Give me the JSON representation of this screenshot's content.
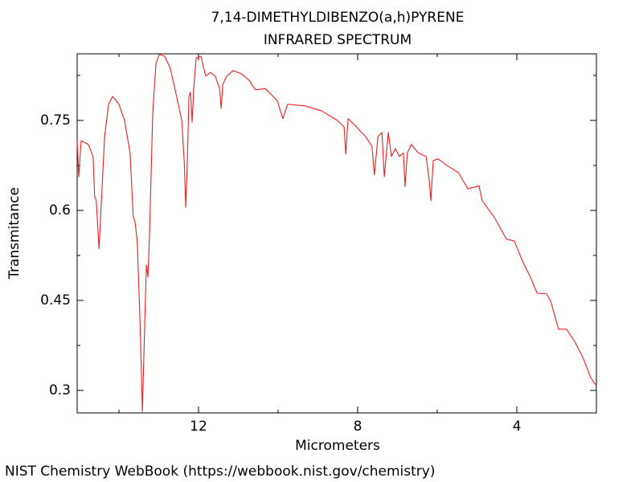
{
  "chart_data": {
    "type": "line",
    "title": "7,14-DIMETHYLDIBENZO(a,h)PYRENE",
    "subtitle": "INFRARED SPECTRUM",
    "x_label": "Micrometers",
    "y_label": "Transmitance",
    "footer": "NIST Chemistry WebBook (https://webbook.nist.gov/chemistry)",
    "color": "#e8201e",
    "xlim": [
      15.05,
      2.0
    ],
    "ylim": [
      0.2625,
      0.861
    ],
    "xticks": [
      12,
      8,
      4
    ],
    "xminorticks": [
      14,
      10,
      6,
      2
    ],
    "yticks": [
      0.75,
      0.6,
      0.45,
      0.3
    ],
    "yminorticks": [
      0.825,
      0.675,
      0.525,
      0.375
    ],
    "x": [
      15.05,
      15.01,
      14.95,
      14.77,
      14.65,
      14.61,
      14.57,
      14.5,
      14.44,
      14.36,
      14.26,
      14.16,
      14.0,
      13.86,
      13.72,
      13.64,
      13.6,
      13.54,
      13.47,
      13.41,
      13.35,
      13.31,
      13.27,
      13.23,
      13.15,
      13.07,
      12.99,
      12.85,
      12.71,
      12.55,
      12.42,
      12.36,
      12.32,
      12.28,
      12.24,
      12.2,
      12.16,
      12.12,
      12.06,
      11.94,
      11.82,
      11.7,
      11.58,
      11.47,
      11.43,
      11.39,
      11.29,
      11.13,
      10.93,
      10.73,
      10.57,
      10.32,
      10.02,
      9.88,
      9.76,
      9.31,
      8.91,
      8.51,
      8.34,
      8.3,
      8.24,
      8.0,
      7.8,
      7.64,
      7.58,
      7.49,
      7.39,
      7.33,
      7.23,
      7.15,
      7.05,
      6.95,
      6.85,
      6.81,
      6.75,
      6.65,
      6.48,
      6.28,
      6.2,
      6.16,
      6.1,
      5.98,
      5.78,
      5.47,
      5.23,
      4.95,
      4.87,
      4.57,
      4.26,
      4.06,
      3.86,
      3.66,
      3.49,
      3.25,
      3.15,
      2.95,
      2.75,
      2.55,
      2.34,
      2.14,
      2.0
    ],
    "values": [
      0.7165,
      0.656,
      0.716,
      0.71,
      0.69,
      0.623,
      0.616,
      0.536,
      0.616,
      0.723,
      0.777,
      0.79,
      0.777,
      0.75,
      0.696,
      0.589,
      0.583,
      0.549,
      0.415,
      0.265,
      0.415,
      0.509,
      0.489,
      0.563,
      0.763,
      0.844,
      0.86,
      0.857,
      0.837,
      0.79,
      0.75,
      0.683,
      0.605,
      0.683,
      0.79,
      0.797,
      0.747,
      0.803,
      0.854,
      0.857,
      0.824,
      0.83,
      0.824,
      0.803,
      0.77,
      0.81,
      0.824,
      0.833,
      0.828,
      0.817,
      0.801,
      0.803,
      0.783,
      0.753,
      0.777,
      0.774,
      0.766,
      0.75,
      0.739,
      0.694,
      0.753,
      0.737,
      0.723,
      0.707,
      0.659,
      0.723,
      0.73,
      0.656,
      0.73,
      0.69,
      0.703,
      0.69,
      0.696,
      0.64,
      0.696,
      0.71,
      0.696,
      0.69,
      0.65,
      0.616,
      0.683,
      0.686,
      0.676,
      0.663,
      0.636,
      0.641,
      0.616,
      0.589,
      0.552,
      0.549,
      0.516,
      0.489,
      0.462,
      0.461,
      0.449,
      0.402,
      0.402,
      0.382,
      0.355,
      0.321,
      0.308
    ]
  }
}
